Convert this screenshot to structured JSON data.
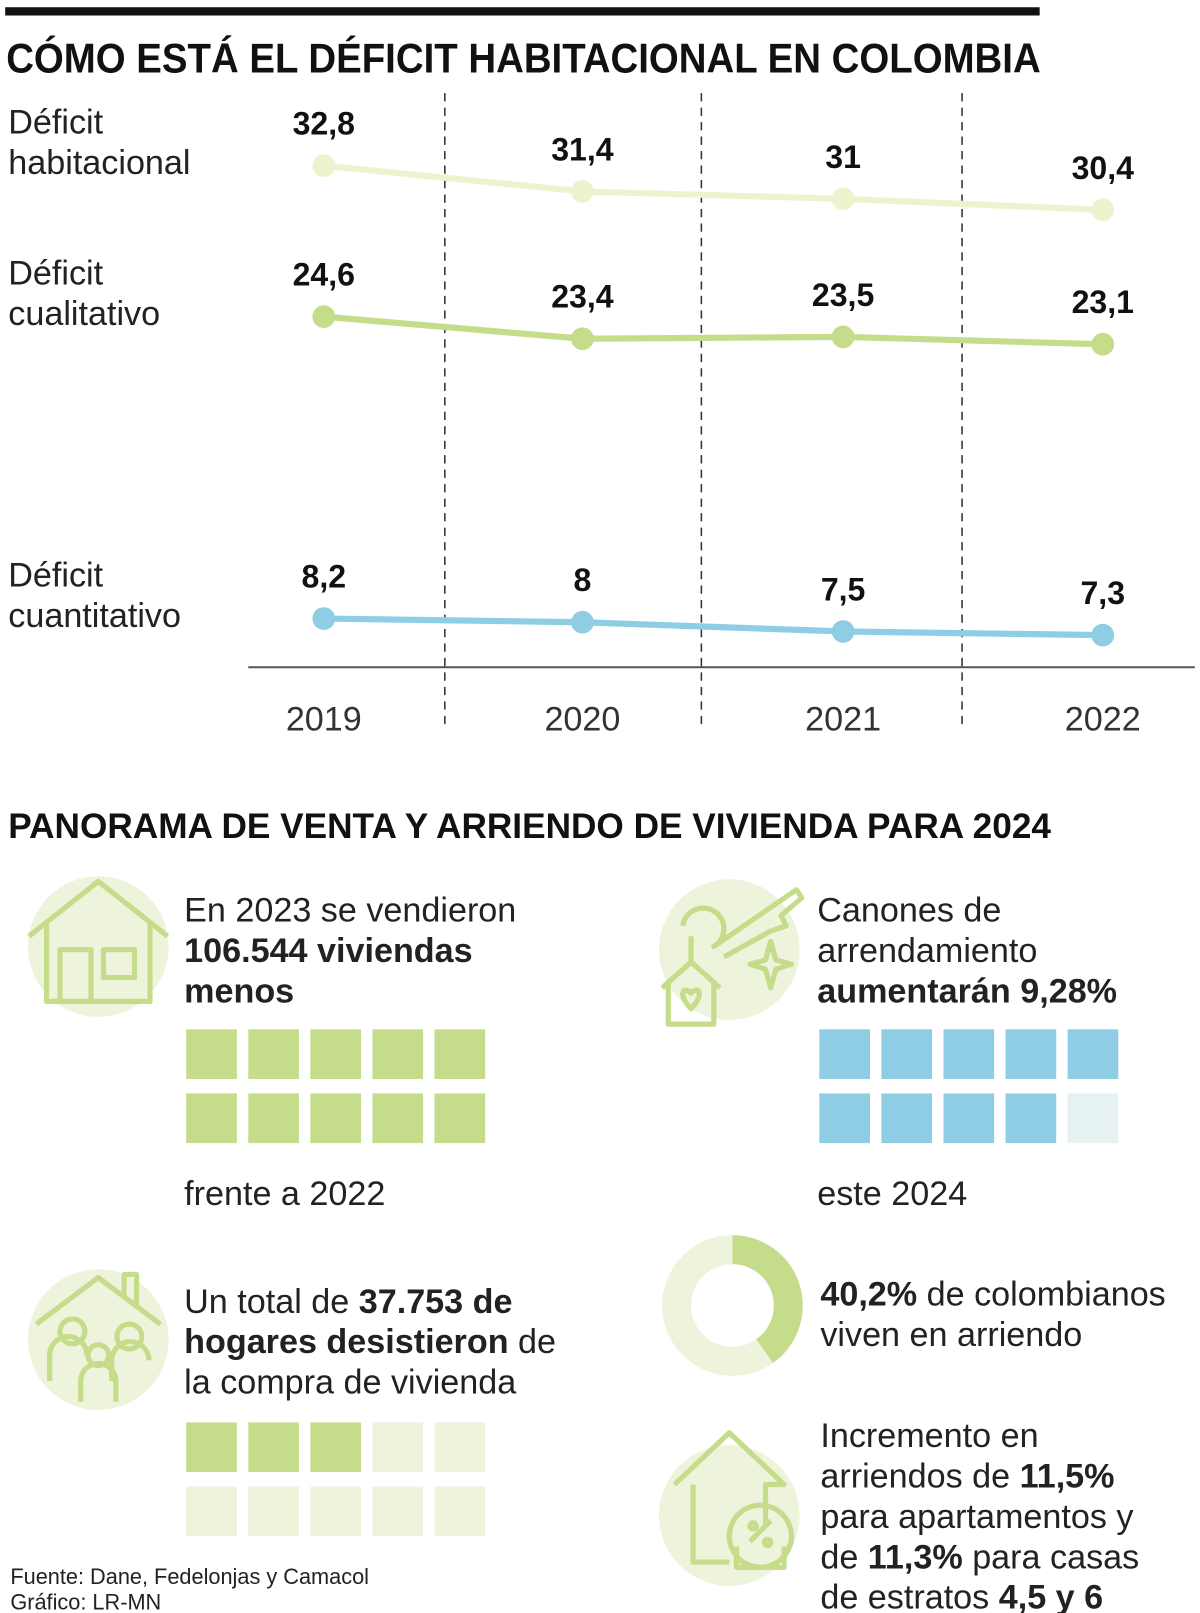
{
  "chart_data": {
    "type": "line",
    "title": "CÓMO ESTÁ EL DÉFICIT HABITACIONAL EN COLOMBIA",
    "categories": [
      "2019",
      "2020",
      "2021",
      "2022"
    ],
    "ylim": [
      5.5,
      35
    ],
    "series": [
      {
        "name": "Déficit habitacional",
        "color": "#eef3cf",
        "values": [
          32.8,
          31.4,
          31,
          30.4
        ],
        "value_labels": [
          "32,8",
          "31,4",
          "31",
          "30,4"
        ]
      },
      {
        "name": "Déficit cualitativo",
        "color": "#c5dc8b",
        "values": [
          24.6,
          23.4,
          23.5,
          23.1
        ],
        "value_labels": [
          "24,6",
          "23,4",
          "23,5",
          "23,1"
        ]
      },
      {
        "name": "Déficit cuantitativo",
        "color": "#8fcde4",
        "values": [
          8.2,
          8,
          7.5,
          7.3
        ],
        "value_labels": [
          "8,2",
          "8",
          "7,5",
          "7,3"
        ]
      }
    ]
  },
  "panorama": {
    "title": "PANORAMA DE VENTA Y ARRIENDO DE VIVIENDA PARA 2024",
    "items": [
      {
        "text": [
          {
            "text": "En 2023 se vendieron ",
            "bold": false
          },
          {
            "text": "106.544 viviendas menos",
            "bold": true
          }
        ],
        "caption": "frente a 2022",
        "waffle": {
          "filled": 10,
          "total": 10,
          "color": "#c5dc8b",
          "empty_color": "#eef3dc"
        }
      },
      {
        "text": [
          {
            "text": "Canones de arrendamiento ",
            "bold": false
          },
          {
            "text": "aumentarán 9,28%",
            "bold": true
          }
        ],
        "caption": "este 2024",
        "waffle": {
          "filled": 9,
          "total": 10,
          "color": "#8fcde4",
          "empty_color": "#e6f2f2"
        }
      },
      {
        "text": [
          {
            "text": "Un total de ",
            "bold": false
          },
          {
            "text": "37.753 de hogares desistieron",
            "bold": true
          },
          {
            "text": " de la compra de vivienda",
            "bold": false
          }
        ],
        "waffle": {
          "filled": 3,
          "total": 10,
          "color": "#c5dc8b",
          "empty_color": "#eef3dc"
        }
      },
      {
        "text": [
          {
            "text": "40,2%",
            "bold": true
          },
          {
            "text": " de colombianos viven en arriendo",
            "bold": false
          }
        ],
        "donut": {
          "value": 40.2,
          "color": "#c5dc8b",
          "empty_color": "#eef3dc"
        }
      },
      {
        "text": [
          {
            "text": "Incremento en arriendos de ",
            "bold": false
          },
          {
            "text": "11,5%",
            "bold": true
          },
          {
            "text": " para apartamentos y de ",
            "bold": false
          },
          {
            "text": "11,3%",
            "bold": true
          },
          {
            "text": " para casas de estratos ",
            "bold": false
          },
          {
            "text": "4,5 y 6",
            "bold": true
          }
        ]
      }
    ]
  },
  "footer": {
    "source": "Fuente: Dane, Fedelonjas y Camacol",
    "credit": "Gráfico: LR-MN"
  }
}
